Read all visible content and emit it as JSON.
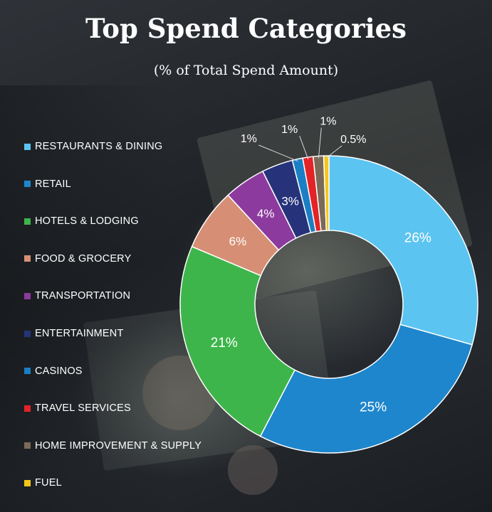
{
  "title": "Top Spend Categories",
  "subtitle": "(% of Total Spend Amount)",
  "chart_data": {
    "type": "pie",
    "variant": "donut",
    "title": "Top Spend Categories",
    "subtitle": "(% of Total Spend Amount)",
    "legend_position": "left",
    "slices": [
      {
        "label": "RESTAURANTS & DINING",
        "value": 26,
        "display": "26%",
        "color": "#5bc4f0"
      },
      {
        "label": "RETAIL",
        "value": 25,
        "display": "25%",
        "color": "#1e86cc"
      },
      {
        "label": "HOTELS & LODGING",
        "value": 21,
        "display": "21%",
        "color": "#3db54a"
      },
      {
        "label": "FOOD & GROCERY",
        "value": 6,
        "display": "6%",
        "color": "#d68f74"
      },
      {
        "label": "TRANSPORTATION",
        "value": 4,
        "display": "4%",
        "color": "#8c3a9e"
      },
      {
        "label": "ENTERTAINMENT",
        "value": 3,
        "display": "3%",
        "color": "#26337a"
      },
      {
        "label": "CASINOS",
        "value": 1,
        "display": "1%",
        "color": "#1a7fc4"
      },
      {
        "label": "TRAVEL SERVICES",
        "value": 1,
        "display": "1%",
        "color": "#e32326"
      },
      {
        "label": "HOME IMPROVEMENT & SUPPLY",
        "value": 1,
        "display": "1%",
        "color": "#7a6a58"
      },
      {
        "label": "FUEL",
        "value": 0.5,
        "display": "0.5%",
        "color": "#f5c518"
      }
    ]
  }
}
